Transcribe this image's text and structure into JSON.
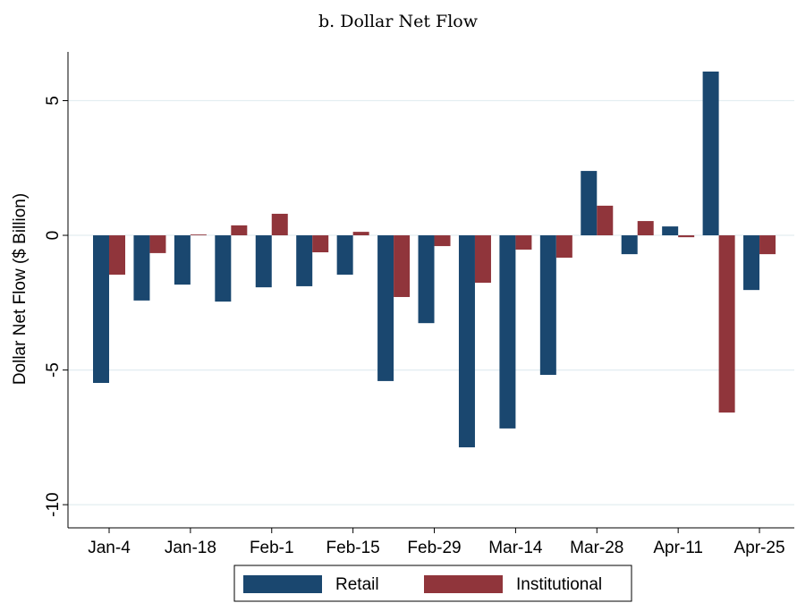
{
  "chart_data": {
    "type": "bar",
    "title": "b. Dollar Net Flow",
    "y_label": "Dollar Net Flow ($ Billion)",
    "categories": [
      "Jan-4",
      null,
      "Jan-18",
      null,
      "Feb-1",
      null,
      "Feb-15",
      null,
      "Feb-29",
      null,
      "Mar-14",
      null,
      "Mar-28",
      null,
      "Apr-11",
      null,
      "Apr-25"
    ],
    "series": [
      {
        "name": "Retail",
        "color": "#1a476f",
        "values": [
          -5.48,
          -2.42,
          -1.83,
          -2.46,
          -1.93,
          -1.89,
          -1.46,
          -5.41,
          -3.26,
          -7.87,
          -7.17,
          -5.18,
          2.39,
          -0.7,
          0.33,
          6.08,
          -2.03
        ]
      },
      {
        "name": "Institutional",
        "color": "#90353b",
        "values": [
          -1.46,
          -0.66,
          0.03,
          0.37,
          0.8,
          -0.63,
          0.13,
          -2.29,
          -0.4,
          -1.76,
          -0.53,
          -0.83,
          1.1,
          0.53,
          -0.07,
          -6.58,
          -0.7
        ]
      }
    ],
    "ylim": [
      -10.86,
      6.81
    ],
    "yticks": [
      -10,
      -5,
      0,
      5
    ],
    "grid": true
  }
}
